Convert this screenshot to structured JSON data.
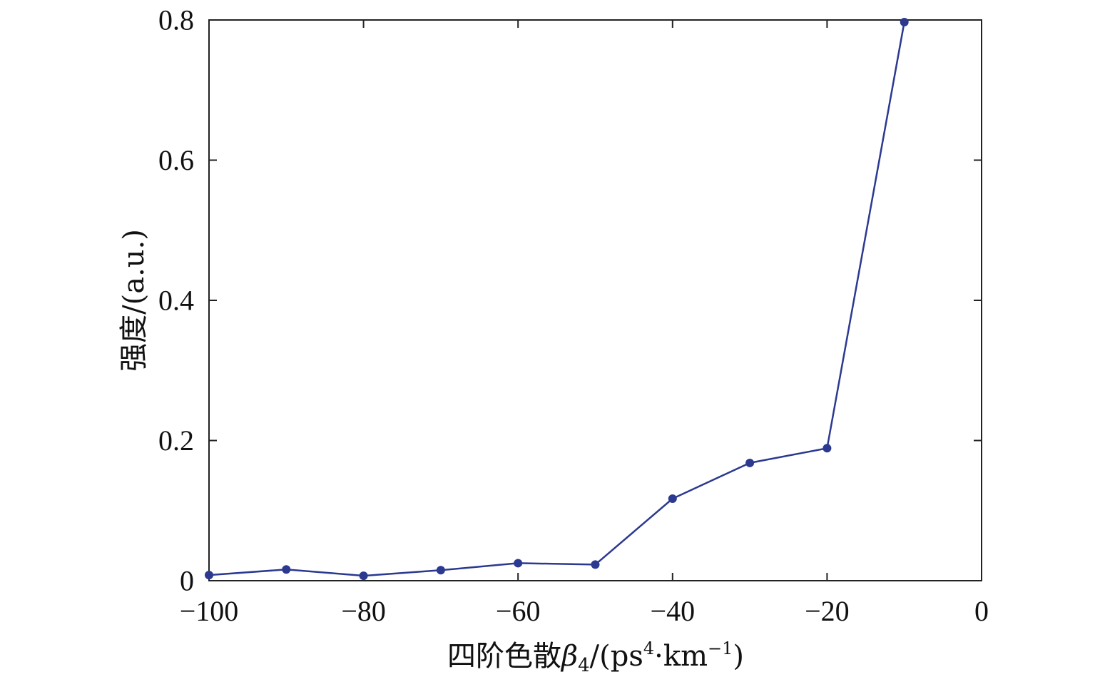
{
  "chart_data": {
    "type": "line",
    "title": "",
    "xlabel": "四阶色散β4/(ps4·km−1)",
    "xlabel_parts": {
      "prefix": "四阶色散",
      "symbol": "β",
      "symbol_sub": "4",
      "unit_open": "/(ps",
      "unit_sup1": "4",
      "unit_mid": "·km",
      "unit_sup2": "−1",
      "unit_close": ")"
    },
    "ylabel": "强度/(a.u.)",
    "xlim": [
      -100,
      0
    ],
    "ylim": [
      0,
      0.8
    ],
    "xticks": [
      -100,
      -80,
      -60,
      -40,
      -20,
      0
    ],
    "xtick_labels": [
      "−100",
      "−80",
      "−60",
      "−40",
      "−20",
      "0"
    ],
    "yticks": [
      0,
      0.2,
      0.4,
      0.6,
      0.8
    ],
    "ytick_labels": [
      "0",
      "0.2",
      "0.4",
      "0.6",
      "0.8"
    ],
    "grid": false,
    "series": [
      {
        "x": [
          -100,
          -90,
          -80,
          -70,
          -60,
          -50,
          -40,
          -30,
          -20,
          -10
        ],
        "y": [
          0.008,
          0.016,
          0.007,
          0.015,
          0.025,
          0.023,
          0.117,
          0.168,
          0.189,
          0.797
        ],
        "color": "#2b3990"
      }
    ]
  }
}
